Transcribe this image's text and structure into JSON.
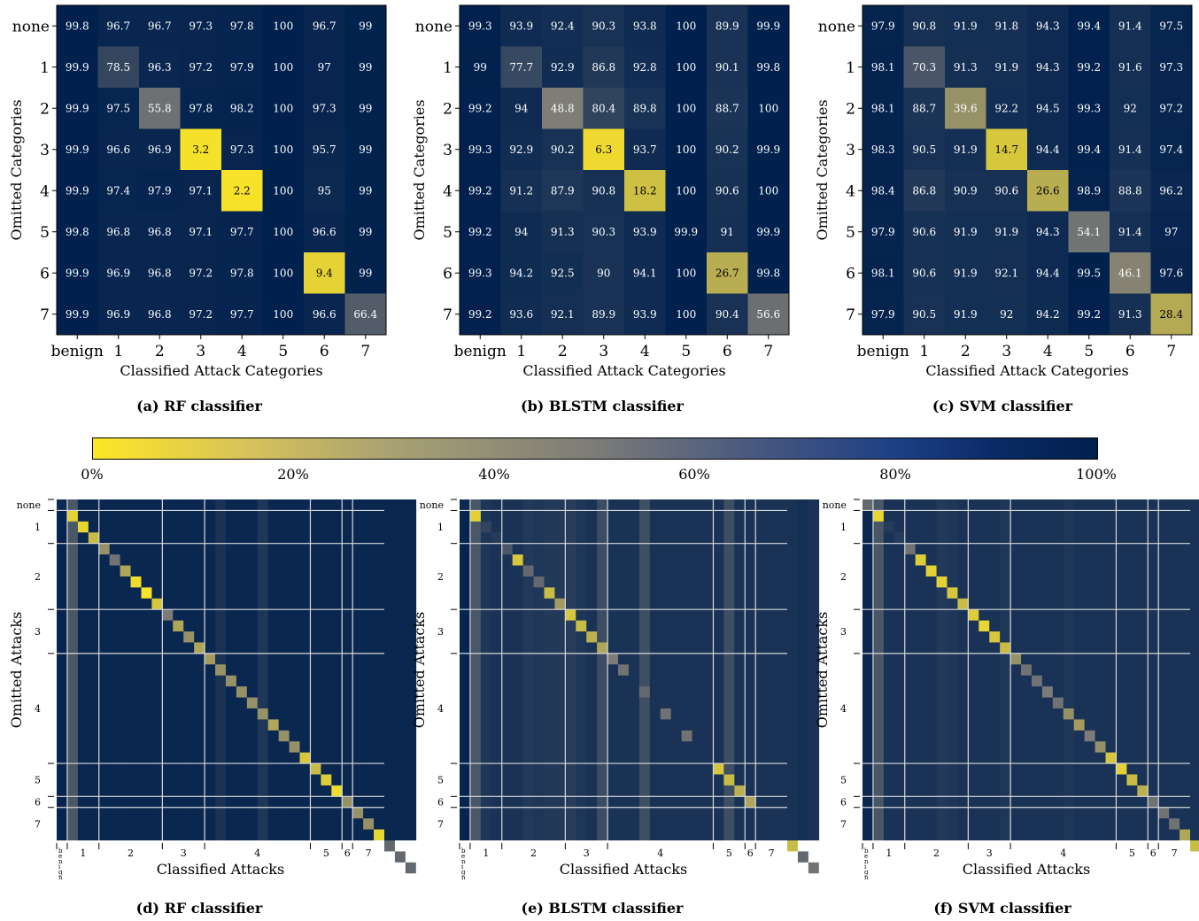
{
  "colormap": {
    "low": "#fde725",
    "mid": "#7c7b78",
    "high": "#00204d"
  },
  "colorbar": {
    "ticks": [
      "0%",
      "20%",
      "40%",
      "60%",
      "80%",
      "100%"
    ]
  },
  "chart_data": [
    {
      "type": "heatmap",
      "caption": "(a) RF classifier",
      "xlabel": "Classified Attack Categories",
      "ylabel": "Omitted Categories",
      "x_labels": [
        "benign",
        "1",
        "2",
        "3",
        "4",
        "5",
        "6",
        "7"
      ],
      "y_labels": [
        "none",
        "1",
        "2",
        "3",
        "4",
        "5",
        "6",
        "7"
      ],
      "values": [
        [
          99.8,
          96.7,
          96.7,
          97.3,
          97.8,
          100,
          96.7,
          99.0
        ],
        [
          99.9,
          78.5,
          96.3,
          97.2,
          97.9,
          100,
          97.0,
          99.0
        ],
        [
          99.9,
          97.5,
          55.8,
          97.8,
          98.2,
          100,
          97.3,
          99.0
        ],
        [
          99.9,
          96.6,
          96.9,
          3.2,
          97.3,
          100,
          95.7,
          99.0
        ],
        [
          99.9,
          97.4,
          97.9,
          97.1,
          2.2,
          100,
          95.0,
          99.0
        ],
        [
          99.8,
          96.8,
          96.8,
          97.1,
          97.7,
          100,
          96.6,
          99.0
        ],
        [
          99.9,
          96.9,
          96.8,
          97.2,
          97.8,
          100,
          9.4,
          99.0
        ],
        [
          99.9,
          96.9,
          96.8,
          97.2,
          97.7,
          100,
          96.6,
          66.4
        ]
      ]
    },
    {
      "type": "heatmap",
      "caption": "(b) BLSTM classifier",
      "xlabel": "Classified Attack Categories",
      "ylabel": "Omitted Categories",
      "x_labels": [
        "benign",
        "1",
        "2",
        "3",
        "4",
        "5",
        "6",
        "7"
      ],
      "y_labels": [
        "none",
        "1",
        "2",
        "3",
        "4",
        "5",
        "6",
        "7"
      ],
      "values": [
        [
          99.3,
          93.9,
          92.4,
          90.3,
          93.8,
          100,
          89.9,
          99.9
        ],
        [
          99.0,
          77.7,
          92.9,
          86.8,
          92.8,
          100,
          90.1,
          99.8
        ],
        [
          99.2,
          94.0,
          48.8,
          80.4,
          89.8,
          100,
          88.7,
          100
        ],
        [
          99.3,
          92.9,
          90.2,
          6.3,
          93.7,
          100,
          90.2,
          99.9
        ],
        [
          99.2,
          91.2,
          87.9,
          90.8,
          18.2,
          100,
          90.6,
          100
        ],
        [
          99.2,
          94.0,
          91.3,
          90.3,
          93.9,
          99.9,
          91.0,
          99.9
        ],
        [
          99.3,
          94.2,
          92.5,
          90.0,
          94.1,
          100,
          26.7,
          99.8
        ],
        [
          99.2,
          93.6,
          92.1,
          89.9,
          93.9,
          100,
          90.4,
          56.6
        ]
      ]
    },
    {
      "type": "heatmap",
      "caption": "(c) SVM classifier",
      "xlabel": "Classified Attack Categories",
      "ylabel": "Omitted Categories",
      "x_labels": [
        "benign",
        "1",
        "2",
        "3",
        "4",
        "5",
        "6",
        "7"
      ],
      "y_labels": [
        "none",
        "1",
        "2",
        "3",
        "4",
        "5",
        "6",
        "7"
      ],
      "values": [
        [
          97.9,
          90.8,
          91.9,
          91.8,
          94.3,
          99.4,
          91.4,
          97.5
        ],
        [
          98.1,
          70.3,
          91.3,
          91.9,
          94.3,
          99.2,
          91.6,
          97.3
        ],
        [
          98.1,
          88.7,
          39.6,
          92.2,
          94.5,
          99.3,
          92.0,
          97.2
        ],
        [
          98.3,
          90.5,
          91.9,
          14.7,
          94.4,
          99.4,
          91.4,
          97.4
        ],
        [
          98.4,
          86.8,
          90.9,
          90.6,
          26.6,
          98.9,
          88.8,
          96.2
        ],
        [
          97.9,
          90.6,
          91.9,
          91.9,
          94.3,
          54.1,
          91.4,
          97.0
        ],
        [
          98.1,
          90.6,
          91.9,
          92.1,
          94.4,
          99.5,
          46.1,
          97.6
        ],
        [
          97.9,
          90.5,
          91.9,
          92.0,
          94.2,
          99.2,
          91.3,
          28.4
        ]
      ]
    },
    {
      "type": "heatmap",
      "caption": "(d) RF classifier",
      "xlabel": "Classified Attacks",
      "ylabel": "Omitted Attacks",
      "x_labels": [
        "benign",
        "1",
        "2",
        "3",
        "4",
        "5",
        "6",
        "7"
      ],
      "y_labels": [
        "none",
        "1",
        "2",
        "3",
        "4",
        "5",
        "6",
        "7"
      ],
      "x_group_sizes": [
        1,
        3,
        6,
        4,
        10,
        3,
        1,
        3
      ],
      "y_group_sizes": [
        1,
        3,
        6,
        4,
        10,
        3,
        1,
        3
      ],
      "diagonal_values": [
        95,
        10,
        8,
        20,
        40,
        55,
        30,
        5,
        2,
        15,
        50,
        30,
        40,
        30,
        35,
        40,
        40,
        40,
        40,
        40,
        30,
        40,
        40,
        15,
        20,
        12,
        5,
        40,
        40,
        40,
        8,
        60,
        60,
        60
      ],
      "column_values": [
        98,
        70,
        96,
        96,
        96,
        96,
        96,
        96,
        96,
        96,
        96,
        96,
        96,
        96,
        96,
        90,
        96,
        96,
        96,
        88,
        96,
        96,
        96,
        96,
        96,
        96,
        96,
        96,
        96,
        96,
        96,
        96,
        96,
        96
      ]
    },
    {
      "type": "heatmap",
      "caption": "(e) BLSTM classifier",
      "xlabel": "Classified Attacks",
      "ylabel": "Omitted Attacks",
      "x_labels": [
        "benign",
        "1",
        "2",
        "3",
        "4",
        "5",
        "6",
        "7"
      ],
      "y_labels": [
        "none",
        "1",
        "2",
        "3",
        "4",
        "5",
        "6",
        "7"
      ],
      "x_group_sizes": [
        1,
        3,
        6,
        4,
        10,
        3,
        1,
        3
      ],
      "y_group_sizes": [
        1,
        3,
        6,
        4,
        10,
        3,
        1,
        3
      ],
      "diagonal_values": [
        95,
        10,
        80,
        85,
        70,
        15,
        60,
        60,
        20,
        35,
        15,
        20,
        25,
        30,
        50,
        55,
        90,
        60,
        90,
        55,
        90,
        55,
        90,
        90,
        15,
        20,
        25,
        30,
        90,
        90,
        90,
        20,
        60,
        55
      ],
      "column_values": [
        98,
        70,
        88,
        90,
        90,
        90,
        86,
        88,
        86,
        86,
        84,
        88,
        90,
        76,
        90,
        90,
        90,
        75,
        90,
        90,
        90,
        90,
        90,
        90,
        90,
        75,
        90,
        90,
        90,
        90,
        90,
        90,
        92,
        90
      ]
    },
    {
      "type": "heatmap",
      "caption": "(f) SVM classifier",
      "xlabel": "Classified Attacks",
      "ylabel": "Omitted Attacks",
      "x_labels": [
        "benign",
        "1",
        "2",
        "3",
        "4",
        "5",
        "6",
        "7"
      ],
      "y_labels": [
        "none",
        "1",
        "2",
        "3",
        "4",
        "5",
        "6",
        "7"
      ],
      "x_group_sizes": [
        1,
        3,
        6,
        4,
        10,
        3,
        1,
        3
      ],
      "y_group_sizes": [
        1,
        3,
        6,
        4,
        10,
        3,
        1,
        3
      ],
      "diagonal_values": [
        60,
        8,
        85,
        85,
        55,
        12,
        10,
        10,
        15,
        20,
        12,
        8,
        15,
        20,
        40,
        55,
        55,
        50,
        55,
        40,
        35,
        50,
        40,
        15,
        10,
        20,
        25,
        55,
        55,
        55,
        30,
        20,
        15,
        5
      ],
      "column_values": [
        96,
        70,
        90,
        90,
        90,
        90,
        90,
        86,
        88,
        90,
        90,
        90,
        90,
        88,
        90,
        90,
        90,
        90,
        90,
        88,
        90,
        90,
        90,
        90,
        90,
        90,
        90,
        90,
        90,
        90,
        90,
        90,
        90,
        90
      ]
    }
  ]
}
